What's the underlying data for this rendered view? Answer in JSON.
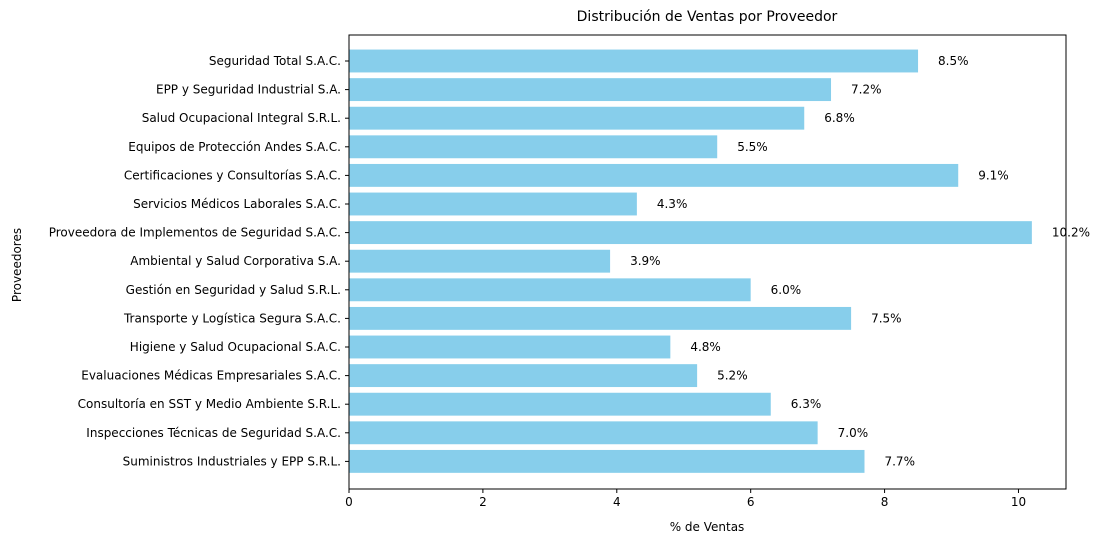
{
  "chart_data": {
    "type": "bar",
    "orientation": "horizontal",
    "title": "Distribución de Ventas por Proveedor",
    "xlabel": "% de Ventas",
    "ylabel": "Proveedores",
    "xlim": [
      0,
      10.71
    ],
    "xticks": [
      0,
      2,
      4,
      6,
      8,
      10
    ],
    "bar_color": "#87CEEB",
    "grid": false,
    "categories": [
      "Seguridad Total S.A.C.",
      "EPP y Seguridad Industrial S.A.",
      "Salud Ocupacional Integral S.R.L.",
      "Equipos de Protección Andes S.A.C.",
      "Certificaciones y Consultorías S.A.C.",
      "Servicios Médicos Laborales S.A.C.",
      "Proveedora de Implementos de Seguridad S.A.C.",
      "Ambiental y Salud Corporativa S.A.",
      "Gestión en Seguridad y Salud S.R.L.",
      "Transporte y Logística Segura S.A.C.",
      "Higiene y Salud Ocupacional S.A.C.",
      "Evaluaciones Médicas Empresariales S.A.C.",
      "Consultoría en SST y Medio Ambiente S.R.L.",
      "Inspecciones Técnicas de Seguridad S.A.C.",
      "Suministros Industriales y EPP S.R.L."
    ],
    "values": [
      8.5,
      7.2,
      6.8,
      5.5,
      9.1,
      4.3,
      10.2,
      3.9,
      6.0,
      7.5,
      4.8,
      5.2,
      6.3,
      7.0,
      7.7
    ],
    "value_labels": [
      "8.5%",
      "7.2%",
      "6.8%",
      "5.5%",
      "9.1%",
      "4.3%",
      "10.2%",
      "3.9%",
      "6.0%",
      "7.5%",
      "4.8%",
      "5.2%",
      "6.3%",
      "7.0%",
      "7.7%"
    ]
  }
}
